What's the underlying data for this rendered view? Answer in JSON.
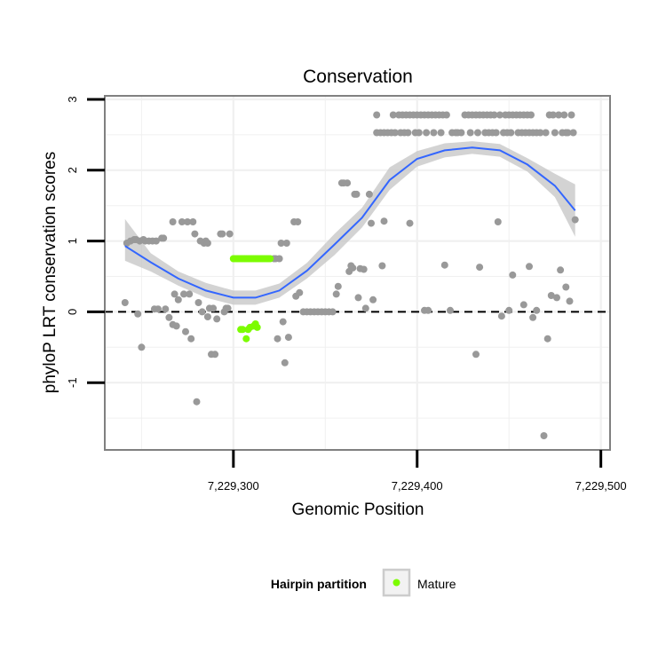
{
  "chart_data": {
    "type": "scatter",
    "title": "Conservation",
    "xlabel": "Genomic Position",
    "ylabel": "phyloP LRT conservation scores",
    "xlim": [
      7229230,
      7229505
    ],
    "ylim": [
      -1.95,
      3.05
    ],
    "x_ticks": [
      7229300,
      7229400,
      7229500
    ],
    "x_tick_labels": [
      "7,229,300",
      "7,229,400",
      "7,229,500"
    ],
    "y_ticks": [
      -1,
      0,
      1,
      2,
      3
    ],
    "y_tick_labels": [
      "-1",
      "0",
      "1",
      "2",
      "3"
    ],
    "grid": true,
    "reference_line": {
      "y": 0,
      "style": "dashed"
    },
    "legend": {
      "title": "Hairpin partition",
      "entries": [
        "Mature"
      ],
      "placement": "bottom"
    },
    "colors": {
      "points": "#999999",
      "mature": "#7CFC00",
      "smooth": "#3366FF",
      "ribbon": "#C8C8C8",
      "panel_border": "#808080",
      "grid": "#F0F0F0"
    },
    "series": [
      {
        "name": "",
        "color": "#999999",
        "points": [
          [
            7229241,
            0.13
          ],
          [
            7229242,
            0.97
          ],
          [
            7229244,
            1.0
          ],
          [
            7229246,
            1.02
          ],
          [
            7229247,
            1.02
          ],
          [
            7229248,
            -0.03
          ],
          [
            7229249,
            1.0
          ],
          [
            7229250,
            -0.5
          ],
          [
            7229251,
            1.02
          ],
          [
            7229252,
            1.0
          ],
          [
            7229254,
            1.0
          ],
          [
            7229256,
            1.0
          ],
          [
            7229257,
            0.04
          ],
          [
            7229258,
            1.0
          ],
          [
            7229259,
            0.04
          ],
          [
            7229261,
            1.04
          ],
          [
            7229262,
            1.04
          ],
          [
            7229263,
            0.04
          ],
          [
            7229265,
            -0.08
          ],
          [
            7229267,
            1.27
          ],
          [
            7229267,
            -0.18
          ],
          [
            7229268,
            0.25
          ],
          [
            7229269,
            -0.2
          ],
          [
            7229270,
            0.17
          ],
          [
            7229272,
            1.27
          ],
          [
            7229273,
            0.25
          ],
          [
            7229274,
            -0.28
          ],
          [
            7229275,
            1.27
          ],
          [
            7229276,
            0.25
          ],
          [
            7229277,
            -0.38
          ],
          [
            7229278,
            1.27
          ],
          [
            7229279,
            1.1
          ],
          [
            7229280,
            -1.27
          ],
          [
            7229281,
            0.13
          ],
          [
            7229282,
            1.0
          ],
          [
            7229283,
            0.0
          ],
          [
            7229284,
            0.97
          ],
          [
            7229285,
            1.0
          ],
          [
            7229286,
            -0.07
          ],
          [
            7229286,
            0.97
          ],
          [
            7229287,
            0.05
          ],
          [
            7229288,
            -0.6
          ],
          [
            7229289,
            0.05
          ],
          [
            7229290,
            -0.6
          ],
          [
            7229291,
            -0.1
          ],
          [
            7229293,
            1.1
          ],
          [
            7229294,
            1.1
          ],
          [
            7229295,
            0.0
          ],
          [
            7229296,
            0.05
          ],
          [
            7229297,
            0.05
          ],
          [
            7229298,
            1.1
          ],
          [
            7229322,
            0.75
          ],
          [
            7229323,
            0.75
          ],
          [
            7229324,
            -0.38
          ],
          [
            7229325,
            0.75
          ],
          [
            7229326,
            0.97
          ],
          [
            7229327,
            -0.14
          ],
          [
            7229328,
            -0.72
          ],
          [
            7229329,
            0.97
          ],
          [
            7229330,
            -0.36
          ],
          [
            7229333,
            1.27
          ],
          [
            7229334,
            0.22
          ],
          [
            7229335,
            1.27
          ],
          [
            7229336,
            0.27
          ],
          [
            7229338,
            0.0
          ],
          [
            7229340,
            0.0
          ],
          [
            7229342,
            0.0
          ],
          [
            7229344,
            0.0
          ],
          [
            7229346,
            0.0
          ],
          [
            7229348,
            0.0
          ],
          [
            7229350,
            0.0
          ],
          [
            7229352,
            0.0
          ],
          [
            7229354,
            0.0
          ],
          [
            7229356,
            0.25
          ],
          [
            7229357,
            0.36
          ],
          [
            7229359,
            1.82
          ],
          [
            7229360,
            1.82
          ],
          [
            7229362,
            1.82
          ],
          [
            7229363,
            0.57
          ],
          [
            7229364,
            0.65
          ],
          [
            7229365,
            0.62
          ],
          [
            7229366,
            1.66
          ],
          [
            7229367,
            1.66
          ],
          [
            7229368,
            0.2
          ],
          [
            7229369,
            0.61
          ],
          [
            7229371,
            0.6
          ],
          [
            7229372,
            0.05
          ],
          [
            7229374,
            1.66
          ],
          [
            7229375,
            1.25
          ],
          [
            7229376,
            0.17
          ],
          [
            7229378,
            2.78
          ],
          [
            7229378,
            2.53
          ],
          [
            7229380,
            2.53
          ],
          [
            7229381,
            0.65
          ],
          [
            7229382,
            1.28
          ],
          [
            7229382,
            2.53
          ],
          [
            7229384,
            2.53
          ],
          [
            7229386,
            2.53
          ],
          [
            7229387,
            2.78
          ],
          [
            7229388,
            2.53
          ],
          [
            7229390,
            2.78
          ],
          [
            7229391,
            2.53
          ],
          [
            7229392,
            2.78
          ],
          [
            7229393,
            2.53
          ],
          [
            7229394,
            2.78
          ],
          [
            7229395,
            2.53
          ],
          [
            7229396,
            1.25
          ],
          [
            7229396,
            2.78
          ],
          [
            7229398,
            2.78
          ],
          [
            7229399,
            2.53
          ],
          [
            7229400,
            2.78
          ],
          [
            7229401,
            2.53
          ],
          [
            7229402,
            2.78
          ],
          [
            7229404,
            0.02
          ],
          [
            7229404,
            2.78
          ],
          [
            7229405,
            2.53
          ],
          [
            7229406,
            0.02
          ],
          [
            7229406,
            2.78
          ],
          [
            7229408,
            2.78
          ],
          [
            7229409,
            2.53
          ],
          [
            7229410,
            2.78
          ],
          [
            7229412,
            2.78
          ],
          [
            7229413,
            2.53
          ],
          [
            7229414,
            2.78
          ],
          [
            7229415,
            0.66
          ],
          [
            7229416,
            2.78
          ],
          [
            7229418,
            0.02
          ],
          [
            7229419,
            2.53
          ],
          [
            7229421,
            2.53
          ],
          [
            7229422,
            2.53
          ],
          [
            7229424,
            2.53
          ],
          [
            7229426,
            2.78
          ],
          [
            7229428,
            2.78
          ],
          [
            7229429,
            2.53
          ],
          [
            7229430,
            2.78
          ],
          [
            7229432,
            -0.6
          ],
          [
            7229432,
            2.78
          ],
          [
            7229433,
            2.53
          ],
          [
            7229434,
            0.63
          ],
          [
            7229434,
            2.78
          ],
          [
            7229436,
            2.78
          ],
          [
            7229437,
            2.53
          ],
          [
            7229438,
            2.78
          ],
          [
            7229439,
            2.53
          ],
          [
            7229440,
            2.78
          ],
          [
            7229441,
            2.53
          ],
          [
            7229442,
            2.78
          ],
          [
            7229443,
            2.53
          ],
          [
            7229444,
            1.27
          ],
          [
            7229445,
            2.78
          ],
          [
            7229446,
            -0.06
          ],
          [
            7229447,
            2.53
          ],
          [
            7229448,
            2.78
          ],
          [
            7229449,
            2.53
          ],
          [
            7229450,
            0.02
          ],
          [
            7229450,
            2.78
          ],
          [
            7229451,
            2.53
          ],
          [
            7229452,
            0.52
          ],
          [
            7229452,
            2.78
          ],
          [
            7229454,
            2.78
          ],
          [
            7229455,
            2.53
          ],
          [
            7229456,
            2.78
          ],
          [
            7229457,
            2.53
          ],
          [
            7229458,
            0.1
          ],
          [
            7229458,
            2.78
          ],
          [
            7229459,
            2.53
          ],
          [
            7229460,
            2.78
          ],
          [
            7229461,
            0.64
          ],
          [
            7229461,
            2.53
          ],
          [
            7229462,
            2.78
          ],
          [
            7229463,
            -0.08
          ],
          [
            7229463,
            2.53
          ],
          [
            7229465,
            0.02
          ],
          [
            7229465,
            2.53
          ],
          [
            7229467,
            2.53
          ],
          [
            7229469,
            -1.75
          ],
          [
            7229470,
            2.53
          ],
          [
            7229471,
            -0.38
          ],
          [
            7229472,
            2.78
          ],
          [
            7229473,
            0.23
          ],
          [
            7229474,
            2.78
          ],
          [
            7229475,
            2.53
          ],
          [
            7229476,
            0.2
          ],
          [
            7229477,
            2.78
          ],
          [
            7229478,
            0.59
          ],
          [
            7229479,
            2.53
          ],
          [
            7229480,
            2.78
          ],
          [
            7229481,
            0.35
          ],
          [
            7229481,
            2.53
          ],
          [
            7229482,
            2.53
          ],
          [
            7229483,
            0.15
          ],
          [
            7229484,
            2.78
          ],
          [
            7229485,
            2.53
          ],
          [
            7229486,
            1.3
          ]
        ]
      },
      {
        "name": "Mature",
        "color": "#7CFC00",
        "points": [
          [
            7229300,
            0.75
          ],
          [
            7229301,
            0.75
          ],
          [
            7229302,
            0.75
          ],
          [
            7229303,
            0.75
          ],
          [
            7229304,
            0.75
          ],
          [
            7229305,
            0.75
          ],
          [
            7229306,
            0.75
          ],
          [
            7229307,
            0.75
          ],
          [
            7229308,
            0.75
          ],
          [
            7229309,
            0.75
          ],
          [
            7229310,
            0.75
          ],
          [
            7229311,
            0.75
          ],
          [
            7229312,
            0.75
          ],
          [
            7229313,
            0.75
          ],
          [
            7229314,
            0.75
          ],
          [
            7229315,
            0.75
          ],
          [
            7229316,
            0.75
          ],
          [
            7229317,
            0.75
          ],
          [
            7229318,
            0.75
          ],
          [
            7229319,
            0.75
          ],
          [
            7229320,
            0.75
          ],
          [
            7229304,
            -0.25
          ],
          [
            7229305,
            -0.25
          ],
          [
            7229307,
            -0.38
          ],
          [
            7229308,
            -0.25
          ],
          [
            7229309,
            -0.22
          ],
          [
            7229311,
            -0.2
          ],
          [
            7229312,
            -0.17
          ],
          [
            7229313,
            -0.22
          ]
        ]
      }
    ],
    "smooth": {
      "name": "",
      "color": "#3366FF",
      "x": [
        7229241,
        7229255,
        7229270,
        7229285,
        7229300,
        7229312,
        7229325,
        7229340,
        7229355,
        7229370,
        7229385,
        7229400,
        7229415,
        7229430,
        7229445,
        7229460,
        7229475,
        7229486
      ],
      "y": [
        0.93,
        0.7,
        0.47,
        0.3,
        0.2,
        0.2,
        0.3,
        0.58,
        0.95,
        1.33,
        1.86,
        2.16,
        2.28,
        2.32,
        2.28,
        2.08,
        1.78,
        1.43
      ],
      "lower": [
        0.72,
        0.57,
        0.37,
        0.2,
        0.1,
        0.1,
        0.2,
        0.47,
        0.8,
        1.19,
        1.72,
        2.05,
        2.18,
        2.23,
        2.19,
        1.98,
        1.62,
        1.06
      ],
      "upper": [
        1.31,
        0.83,
        0.57,
        0.41,
        0.3,
        0.3,
        0.4,
        0.69,
        1.1,
        1.47,
        2.04,
        2.27,
        2.38,
        2.41,
        2.37,
        2.17,
        1.95,
        1.8
      ]
    }
  }
}
